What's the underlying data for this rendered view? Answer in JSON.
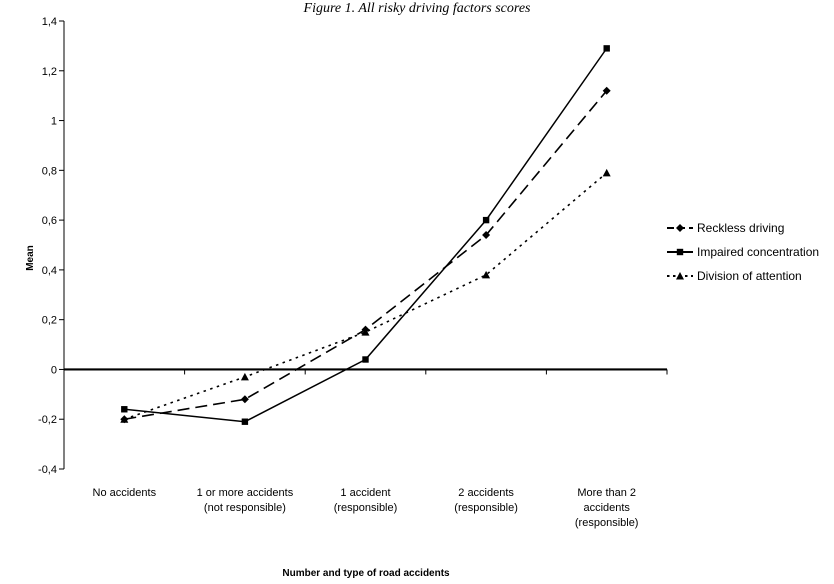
{
  "chart_data": {
    "type": "line",
    "title": "Figure 1. All risky driving factors scores",
    "xlabel": "Number and type of road accidents",
    "ylabel": "Mean",
    "ylim": [
      -0.4,
      1.4
    ],
    "yticks": [
      "-0,4",
      "-0,2",
      "0",
      "0,2",
      "0,4",
      "0,6",
      "0,8",
      "1",
      "1,2",
      "1,4"
    ],
    "categories": [
      [
        "No accidents"
      ],
      [
        "1 or more accidents",
        "(not responsible)"
      ],
      [
        "1 accident",
        "(responsible)"
      ],
      [
        "2 accidents",
        "(responsible)"
      ],
      [
        "More than 2",
        "accidents",
        "(responsible)"
      ]
    ],
    "legend_position": "right",
    "series": [
      {
        "name": "Reckless driving",
        "marker": "diamond",
        "dash": "long-dash",
        "values": [
          -0.2,
          -0.12,
          0.16,
          0.54,
          1.12
        ]
      },
      {
        "name": "Impaired concentration",
        "marker": "square",
        "dash": "solid",
        "values": [
          -0.16,
          -0.21,
          0.04,
          0.6,
          1.29
        ]
      },
      {
        "name": "Division of attention",
        "marker": "triangle",
        "dash": "dotted",
        "values": [
          -0.2,
          -0.03,
          0.15,
          0.38,
          0.79
        ]
      }
    ]
  }
}
